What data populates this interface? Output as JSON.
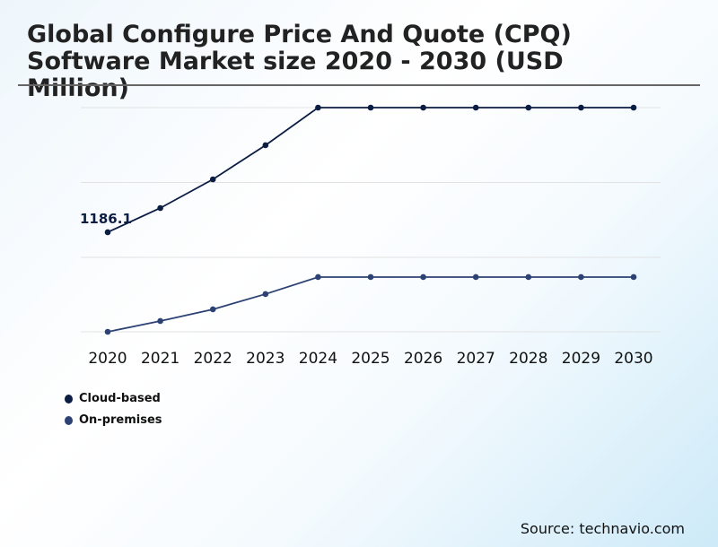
{
  "chart_data": {
    "type": "line",
    "title": "Global Configure Price And Quote (CPQ) Software Market size 2020 - 2030 (USD Million)",
    "xlabel": "",
    "ylabel": "",
    "categories": [
      "2020",
      "2021",
      "2022",
      "2023",
      "2024",
      "2025",
      "2026",
      "2027",
      "2028",
      "2029",
      "2030"
    ],
    "ylim": [
      0,
      2607
    ],
    "grid": true,
    "legend_placement": "bottom-left",
    "series": [
      {
        "name": "Cloud-based",
        "color": "#0c1d44",
        "values": [
          1186.1,
          1462,
          1789,
          2178,
          2607,
          2607,
          2607,
          2607,
          2607,
          2607,
          2607
        ]
      },
      {
        "name": "On-premises",
        "color": "#2d4274",
        "values": [
          51,
          174,
          307,
          481,
          675,
          675,
          675,
          675,
          675,
          675,
          675
        ]
      }
    ],
    "annotations": [
      {
        "series": 0,
        "index": 0,
        "text": "1186.1"
      }
    ]
  },
  "source": "Source: technavio.com"
}
